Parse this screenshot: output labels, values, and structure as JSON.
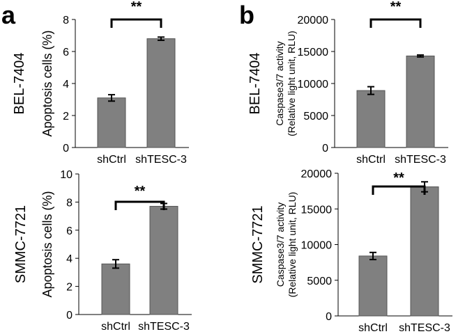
{
  "panel_labels": [
    "a",
    "b"
  ],
  "colors": {
    "bar": "#808080",
    "bar_stroke": "#555555",
    "axis": "#000000"
  },
  "chart_data": [
    {
      "type": "bar",
      "id": "a-top",
      "cell_line": "BEL-7404",
      "ylabel": "Apoptosis cells (%)",
      "categories": [
        "shCtrl",
        "shTESC-3"
      ],
      "values": [
        3.1,
        6.8
      ],
      "errors": [
        0.2,
        0.1
      ],
      "ylim": [
        0,
        8
      ],
      "yticks": [
        "0",
        "2",
        "4",
        "6",
        "8"
      ],
      "significance": "**"
    },
    {
      "type": "bar",
      "id": "b-top",
      "cell_line": "BEL-7404",
      "ylabel": [
        "Caspase3/7 activity",
        "(Relative light unit, RLU)"
      ],
      "categories": [
        "shCtrl",
        "shTESC-3"
      ],
      "values": [
        8900,
        14300
      ],
      "errors": [
        600,
        150
      ],
      "ylim": [
        0,
        20000
      ],
      "yticks": [
        "0",
        "5000",
        "10000",
        "15000",
        "20000"
      ],
      "significance": "**"
    },
    {
      "type": "bar",
      "id": "a-bottom",
      "cell_line": "SMMC-7721",
      "ylabel": "Apoptosis cells (%)",
      "categories": [
        "shCtrl",
        "shTESC-3"
      ],
      "values": [
        3.6,
        7.7
      ],
      "errors": [
        0.3,
        0.2
      ],
      "ylim": [
        0,
        10
      ],
      "yticks": [
        "0",
        "2",
        "4",
        "6",
        "8",
        "10"
      ],
      "significance": "**"
    },
    {
      "type": "bar",
      "id": "b-bottom",
      "cell_line": "SMMC-7721",
      "ylabel": [
        "Caspase3/7 activity",
        "(Relative light unit, RLU)"
      ],
      "categories": [
        "shCtrl",
        "shTESC-3"
      ],
      "values": [
        8400,
        18100
      ],
      "errors": [
        500,
        700
      ],
      "ylim": [
        0,
        20000
      ],
      "yticks": [
        "0",
        "5000",
        "10000",
        "15000",
        "20000"
      ],
      "significance": "**"
    }
  ]
}
